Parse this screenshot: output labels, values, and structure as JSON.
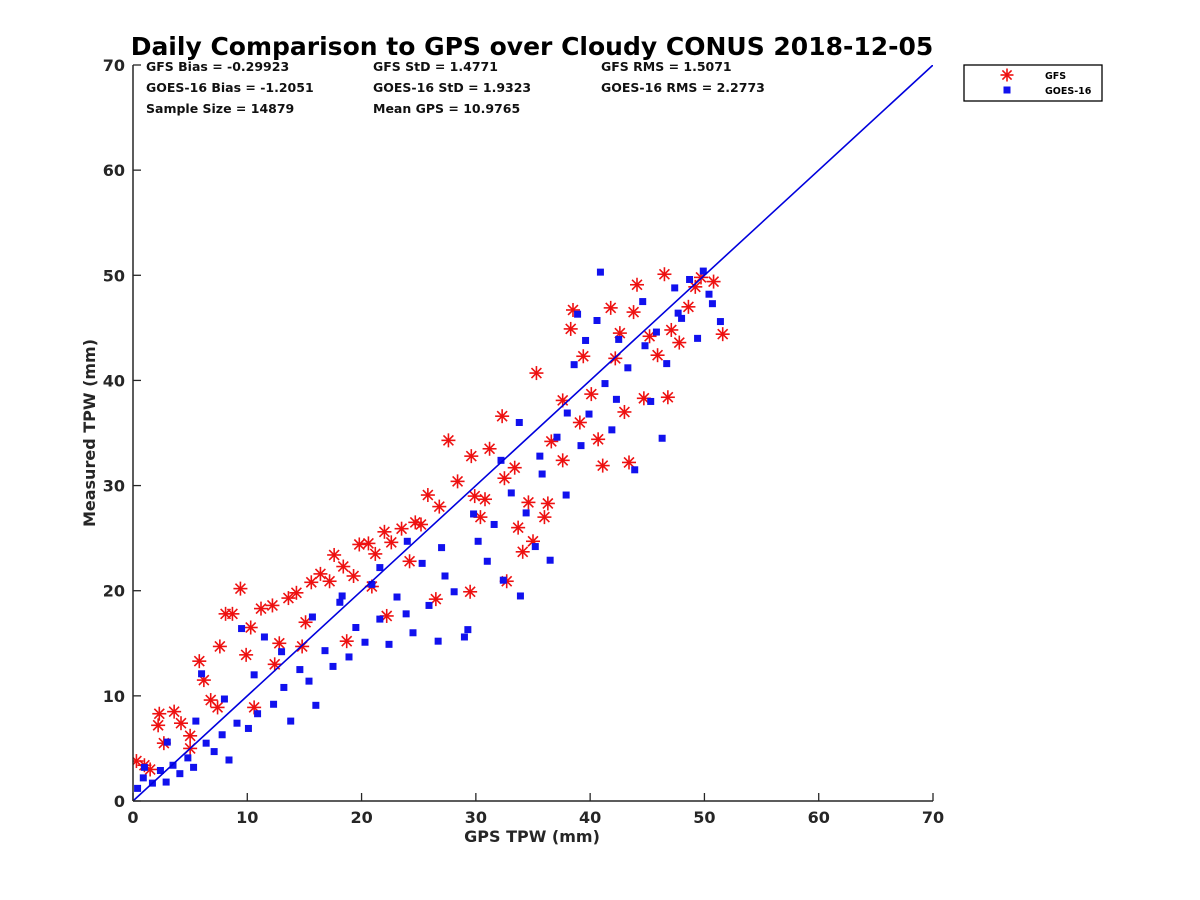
{
  "chart_data": {
    "type": "scatter",
    "title": "Daily Comparison to GPS over Cloudy CONUS 2018-12-05",
    "xlabel": "GPS TPW (mm)",
    "ylabel": "Measured TPW (mm)",
    "xlim": [
      0,
      70
    ],
    "ylim": [
      0,
      70
    ],
    "xticks": [
      0,
      10,
      20,
      30,
      40,
      50,
      60,
      70
    ],
    "yticks": [
      0,
      10,
      20,
      30,
      40,
      50,
      60,
      70
    ],
    "grid": false,
    "legend_position": "outside-top-right",
    "stats": {
      "gfs_bias": "GFS Bias = -0.29923",
      "gfs_std": "GFS StD = 1.4771",
      "gfs_rms": "GFS RMS = 1.5071",
      "goes_bias": "GOES-16 Bias = -1.2051",
      "goes_std": "GOES-16 StD = 1.9323",
      "goes_rms": "GOES-16 RMS = 2.2773",
      "sample_size": "Sample Size = 14879",
      "mean_gps": "Mean GPS = 10.9765"
    },
    "reference_line": {
      "x": [
        0,
        70
      ],
      "y": [
        0,
        70
      ],
      "color": "#0000dd"
    },
    "series": [
      {
        "name": "GFS",
        "marker": "asterisk",
        "color": "#ee1111",
        "points": [
          [
            0.3,
            3.8
          ],
          [
            1.0,
            3.4
          ],
          [
            1.5,
            3.0
          ],
          [
            2.3,
            8.3
          ],
          [
            2.2,
            7.2
          ],
          [
            2.7,
            5.5
          ],
          [
            3.6,
            8.5
          ],
          [
            4.2,
            7.4
          ],
          [
            5.0,
            6.2
          ],
          [
            5.8,
            13.3
          ],
          [
            6.2,
            11.5
          ],
          [
            6.8,
            9.6
          ],
          [
            7.6,
            14.7
          ],
          [
            8.1,
            17.8
          ],
          [
            8.7,
            17.8
          ],
          [
            9.4,
            20.2
          ],
          [
            9.9,
            13.9
          ],
          [
            10.3,
            16.5
          ],
          [
            11.2,
            18.3
          ],
          [
            12.2,
            18.6
          ],
          [
            12.8,
            15.0
          ],
          [
            13.6,
            19.3
          ],
          [
            14.3,
            19.8
          ],
          [
            15.1,
            17.0
          ],
          [
            15.6,
            20.8
          ],
          [
            16.4,
            21.6
          ],
          [
            17.2,
            20.9
          ],
          [
            17.6,
            23.4
          ],
          [
            18.4,
            22.3
          ],
          [
            19.3,
            21.4
          ],
          [
            19.8,
            24.4
          ],
          [
            20.6,
            24.5
          ],
          [
            21.2,
            23.5
          ],
          [
            22.0,
            25.6
          ],
          [
            22.6,
            24.6
          ],
          [
            23.5,
            25.9
          ],
          [
            24.2,
            22.8
          ],
          [
            25.2,
            26.3
          ],
          [
            25.8,
            29.1
          ],
          [
            26.5,
            19.2
          ],
          [
            26.8,
            28.0
          ],
          [
            27.6,
            34.3
          ],
          [
            28.4,
            30.4
          ],
          [
            29.6,
            32.8
          ],
          [
            29.9,
            29.0
          ],
          [
            30.4,
            27.0
          ],
          [
            31.2,
            33.5
          ],
          [
            32.3,
            36.6
          ],
          [
            32.5,
            30.7
          ],
          [
            32.7,
            20.9
          ],
          [
            33.4,
            31.7
          ],
          [
            34.6,
            28.4
          ],
          [
            35.0,
            24.7
          ],
          [
            35.3,
            40.7
          ],
          [
            36.0,
            27.0
          ],
          [
            36.6,
            34.2
          ],
          [
            37.6,
            32.4
          ],
          [
            38.3,
            44.9
          ],
          [
            38.5,
            46.7
          ],
          [
            39.1,
            36.0
          ],
          [
            40.1,
            38.7
          ],
          [
            40.7,
            34.4
          ],
          [
            41.1,
            31.9
          ],
          [
            41.8,
            46.9
          ],
          [
            42.2,
            42.1
          ],
          [
            42.6,
            44.5
          ],
          [
            43.0,
            37.0
          ],
          [
            43.4,
            32.2
          ],
          [
            43.8,
            46.5
          ],
          [
            44.1,
            49.1
          ],
          [
            44.7,
            38.3
          ],
          [
            45.2,
            44.2
          ],
          [
            45.9,
            42.4
          ],
          [
            46.8,
            38.4
          ],
          [
            47.1,
            44.8
          ],
          [
            47.8,
            43.6
          ],
          [
            48.6,
            47.0
          ],
          [
            49.2,
            48.9
          ],
          [
            49.7,
            49.8
          ],
          [
            50.8,
            49.4
          ],
          [
            51.6,
            44.4
          ],
          [
            5.0,
            5.0
          ],
          [
            7.4,
            8.9
          ],
          [
            12.4,
            13.0
          ],
          [
            20.9,
            20.4
          ],
          [
            24.7,
            26.5
          ],
          [
            30.8,
            28.7
          ],
          [
            33.7,
            26.0
          ],
          [
            36.3,
            28.3
          ],
          [
            22.2,
            17.6
          ],
          [
            10.6,
            8.9
          ],
          [
            14.8,
            14.7
          ],
          [
            18.7,
            15.2
          ],
          [
            29.5,
            19.9
          ],
          [
            34.1,
            23.7
          ],
          [
            37.6,
            38.1
          ],
          [
            39.4,
            42.3
          ],
          [
            46.5,
            50.1
          ]
        ]
      },
      {
        "name": "GOES-16",
        "marker": "square",
        "color": "#1111ee",
        "points": [
          [
            0.4,
            1.2
          ],
          [
            0.9,
            2.2
          ],
          [
            1.7,
            1.7
          ],
          [
            2.4,
            2.9
          ],
          [
            2.9,
            1.8
          ],
          [
            3.5,
            3.4
          ],
          [
            4.1,
            2.6
          ],
          [
            4.8,
            4.1
          ],
          [
            5.3,
            3.2
          ],
          [
            6.0,
            12.1
          ],
          [
            6.4,
            5.5
          ],
          [
            7.1,
            4.7
          ],
          [
            7.8,
            6.3
          ],
          [
            8.4,
            3.9
          ],
          [
            9.1,
            7.4
          ],
          [
            9.5,
            16.4
          ],
          [
            10.1,
            6.9
          ],
          [
            10.9,
            8.3
          ],
          [
            11.5,
            15.6
          ],
          [
            12.3,
            9.2
          ],
          [
            13.2,
            10.8
          ],
          [
            13.8,
            7.6
          ],
          [
            14.6,
            12.5
          ],
          [
            15.4,
            11.4
          ],
          [
            16.0,
            9.1
          ],
          [
            16.8,
            14.3
          ],
          [
            17.5,
            12.8
          ],
          [
            18.1,
            18.9
          ],
          [
            18.9,
            13.7
          ],
          [
            19.5,
            16.5
          ],
          [
            20.3,
            15.1
          ],
          [
            20.9,
            20.6
          ],
          [
            21.6,
            17.3
          ],
          [
            22.4,
            14.9
          ],
          [
            23.1,
            19.4
          ],
          [
            23.9,
            17.8
          ],
          [
            24.5,
            16.0
          ],
          [
            25.3,
            22.6
          ],
          [
            25.9,
            18.6
          ],
          [
            26.7,
            15.2
          ],
          [
            27.3,
            21.4
          ],
          [
            28.1,
            19.9
          ],
          [
            29.0,
            15.6
          ],
          [
            29.3,
            16.3
          ],
          [
            30.2,
            24.7
          ],
          [
            31.0,
            22.8
          ],
          [
            31.6,
            26.3
          ],
          [
            32.4,
            21.0
          ],
          [
            33.1,
            29.3
          ],
          [
            33.9,
            19.5
          ],
          [
            34.4,
            27.4
          ],
          [
            35.2,
            24.2
          ],
          [
            35.8,
            31.1
          ],
          [
            36.5,
            22.9
          ],
          [
            37.1,
            34.6
          ],
          [
            37.9,
            29.1
          ],
          [
            38.6,
            41.5
          ],
          [
            39.2,
            33.8
          ],
          [
            39.9,
            36.8
          ],
          [
            40.6,
            45.7
          ],
          [
            41.3,
            39.7
          ],
          [
            41.9,
            35.3
          ],
          [
            42.5,
            43.9
          ],
          [
            43.3,
            41.2
          ],
          [
            43.9,
            31.5
          ],
          [
            44.6,
            47.5
          ],
          [
            45.3,
            38.0
          ],
          [
            45.8,
            44.6
          ],
          [
            46.3,
            34.5
          ],
          [
            46.7,
            41.6
          ],
          [
            47.4,
            48.8
          ],
          [
            48.0,
            45.9
          ],
          [
            48.7,
            49.6
          ],
          [
            49.4,
            44.0
          ],
          [
            49.9,
            50.4
          ],
          [
            50.7,
            47.3
          ],
          [
            51.4,
            45.6
          ],
          [
            38.9,
            46.3
          ],
          [
            40.9,
            50.3
          ],
          [
            33.8,
            36.0
          ],
          [
            1.0,
            3.2
          ],
          [
            3.0,
            5.6
          ],
          [
            5.5,
            7.6
          ],
          [
            8.0,
            9.7
          ],
          [
            10.6,
            12.0
          ],
          [
            13.0,
            14.2
          ],
          [
            15.7,
            17.5
          ],
          [
            18.3,
            19.5
          ],
          [
            21.6,
            22.2
          ],
          [
            24.0,
            24.7
          ],
          [
            27.0,
            24.1
          ],
          [
            29.8,
            27.3
          ],
          [
            32.2,
            32.4
          ],
          [
            35.6,
            32.8
          ],
          [
            38.0,
            36.9
          ],
          [
            42.3,
            38.2
          ],
          [
            44.8,
            43.3
          ],
          [
            47.7,
            46.4
          ],
          [
            50.4,
            48.2
          ],
          [
            39.6,
            43.8
          ]
        ]
      }
    ]
  }
}
